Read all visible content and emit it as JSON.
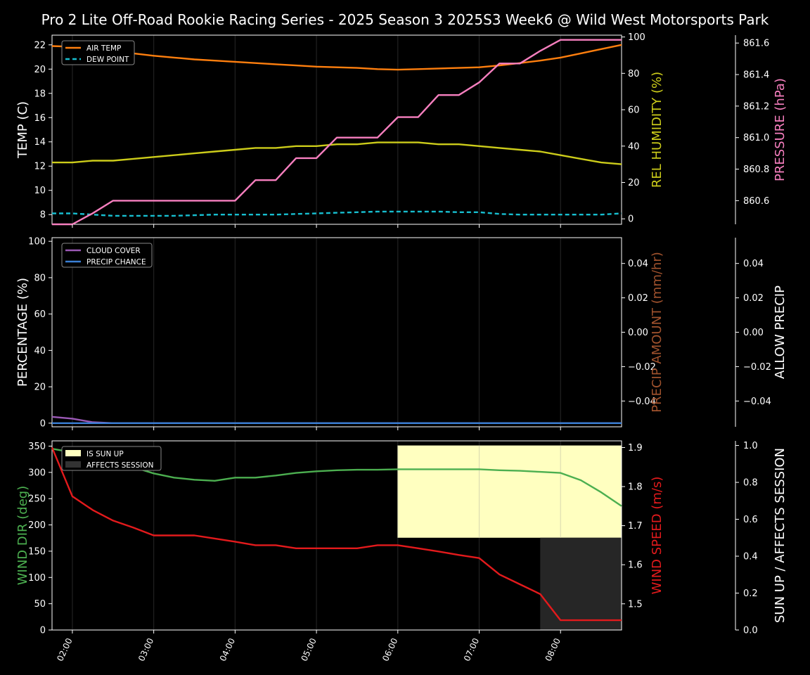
{
  "title": "Pro 2 Lite Off-Road Rookie Racing Series - 2025 Season 3 2025S3 Week6 @ Wild West Motorsports Park",
  "colors": {
    "air_temp": "#ff7f0e",
    "dew_point": "#17becf",
    "humidity": "#cccc1a",
    "pressure": "#f77fbf",
    "cloud": "#9b59b6",
    "precip": "#3a7fd5",
    "precip_amount": "#a0522d",
    "wind_dir": "#4caf50",
    "wind_speed": "#e31a1c",
    "sun_up": "#ffffc0",
    "affects": "#262626",
    "grid": "#222222"
  },
  "x_ticks": [
    "02:00",
    "03:00",
    "04:00",
    "05:00",
    "06:00",
    "07:00",
    "08:00"
  ],
  "chart_data": [
    {
      "type": "line",
      "x_hours": [
        1.75,
        2.0,
        2.25,
        2.5,
        2.75,
        3.0,
        3.25,
        3.5,
        3.75,
        4.0,
        4.25,
        4.5,
        4.75,
        5.0,
        5.25,
        5.5,
        5.75,
        6.0,
        6.25,
        6.5,
        6.75,
        7.0,
        7.25,
        7.5,
        7.75,
        8.0,
        8.25,
        8.5,
        8.75
      ],
      "axes": {
        "left": {
          "label": "TEMP (C)",
          "ylim": [
            7.2,
            22.8
          ],
          "ticks": [
            8,
            10,
            12,
            14,
            16,
            18,
            20,
            22
          ]
        },
        "right1": {
          "label": "REL HUMIDITY (%)",
          "ylim": [
            -3,
            101
          ],
          "ticks": [
            0,
            20,
            40,
            60,
            80,
            100
          ]
        },
        "right2": {
          "label": "PRESSURE (hPa)",
          "ylim": [
            860.45,
            861.65
          ],
          "ticks": [
            "860.6",
            "860.8",
            "861.0",
            "861.2",
            "861.4",
            "861.6"
          ]
        }
      },
      "legend": [
        "AIR TEMP",
        "DEW POINT"
      ],
      "series": [
        {
          "name": "AIR TEMP",
          "axis": "left",
          "values": [
            21.9,
            21.85,
            21.7,
            21.5,
            21.3,
            21.1,
            20.95,
            20.8,
            20.7,
            20.6,
            20.5,
            20.4,
            20.3,
            20.2,
            20.15,
            20.1,
            20.0,
            19.95,
            20.0,
            20.05,
            20.1,
            20.15,
            20.3,
            20.5,
            20.7,
            20.95,
            21.3,
            21.65,
            22.0
          ]
        },
        {
          "name": "DEW POINT",
          "axis": "left",
          "values": [
            8.1,
            8.1,
            8.0,
            7.9,
            7.9,
            7.9,
            7.9,
            7.95,
            8.0,
            8.0,
            8.0,
            8.0,
            8.05,
            8.1,
            8.15,
            8.2,
            8.25,
            8.25,
            8.25,
            8.25,
            8.2,
            8.2,
            8.05,
            8.0,
            8.0,
            8.0,
            8.0,
            8.0,
            8.1
          ]
        },
        {
          "name": "REL HUMIDITY",
          "axis": "right1",
          "values": [
            31,
            31,
            32,
            32,
            33,
            34,
            35,
            36,
            37,
            38,
            39,
            39,
            40,
            40,
            41,
            41,
            42,
            42,
            42,
            41,
            41,
            40,
            39,
            38,
            37,
            35,
            33,
            31,
            30
          ]
        },
        {
          "name": "PRESSURE",
          "axis": "right2",
          "values": [
            860.45,
            860.45,
            860.52,
            860.6,
            860.6,
            860.6,
            860.6,
            860.6,
            860.6,
            860.6,
            860.73,
            860.73,
            860.87,
            860.87,
            861.0,
            861.0,
            861.0,
            861.13,
            861.13,
            861.27,
            861.27,
            861.35,
            861.47,
            861.47,
            861.55,
            861.62,
            861.62,
            861.62,
            861.62
          ]
        }
      ]
    },
    {
      "type": "line",
      "x_hours": [
        1.75,
        2.0,
        2.25,
        2.5,
        2.75,
        3.0,
        3.25,
        3.5,
        3.75,
        4.0,
        4.25,
        4.5,
        4.75,
        5.0,
        5.25,
        5.5,
        5.75,
        6.0,
        6.25,
        6.5,
        6.75,
        7.0,
        7.25,
        7.5,
        7.75,
        8.0,
        8.25,
        8.5,
        8.75
      ],
      "axes": {
        "left": {
          "label": "PERCENTAGE (%)",
          "ylim": [
            -2,
            102
          ],
          "ticks": [
            0,
            20,
            40,
            60,
            80,
            100
          ]
        },
        "right1": {
          "label": "PRECIP AMOUNT (mm/hr)",
          "ylim": [
            -0.055,
            0.055
          ],
          "ticks": [
            "0.04",
            "0.02",
            "0.00",
            "−0.02",
            "−0.04"
          ]
        },
        "right2": {
          "label": "ALLOW PRECIP",
          "ylim": [
            -0.055,
            0.055
          ],
          "ticks": [
            "0.04",
            "0.02",
            "0.00",
            "−0.02",
            "−0.04"
          ]
        }
      },
      "legend": [
        "CLOUD COVER",
        "PRECIP CHANCE"
      ],
      "series": [
        {
          "name": "CLOUD COVER",
          "axis": "left",
          "values": [
            3.5,
            2.5,
            0.5,
            0,
            0,
            0,
            0,
            0,
            0,
            0,
            0,
            0,
            0,
            0,
            0,
            0,
            0,
            0,
            0,
            0,
            0,
            0,
            0,
            0,
            0,
            0,
            0,
            0,
            0
          ]
        },
        {
          "name": "PRECIP CHANCE",
          "axis": "left",
          "values": [
            0,
            0,
            0,
            0,
            0,
            0,
            0,
            0,
            0,
            0,
            0,
            0,
            0,
            0,
            0,
            0,
            0,
            0,
            0,
            0,
            0,
            0,
            0,
            0,
            0,
            0,
            0,
            0,
            0
          ]
        }
      ]
    },
    {
      "type": "line",
      "x_hours": [
        1.75,
        2.0,
        2.25,
        2.5,
        2.75,
        3.0,
        3.25,
        3.5,
        3.75,
        4.0,
        4.25,
        4.5,
        4.75,
        5.0,
        5.25,
        5.5,
        5.75,
        6.0,
        6.25,
        6.5,
        6.75,
        7.0,
        7.25,
        7.5,
        7.75,
        8.0,
        8.25,
        8.5,
        8.75
      ],
      "axes": {
        "left": {
          "label": "WIND DIR (deg)",
          "ylim": [
            0,
            360
          ],
          "ticks": [
            0,
            50,
            100,
            150,
            200,
            250,
            300,
            350
          ]
        },
        "right1": {
          "label": "WIND SPEED (m/s)",
          "ylim": [
            1.433,
            1.917
          ],
          "ticks": [
            "1.5",
            "1.6",
            "1.7",
            "1.8",
            "1.9"
          ]
        },
        "right2": {
          "label": "SUN UP / AFFECTS SESSION",
          "ylim": [
            0,
            1.025
          ],
          "ticks": [
            "0.0",
            "0.2",
            "0.4",
            "0.6",
            "0.8",
            "1.0"
          ]
        }
      },
      "legend": [
        "IS SUN UP",
        "AFFECTS SESSION"
      ],
      "sun_up": {
        "from_hour": 6.0,
        "to_hour": 8.75,
        "bottom": 0.5,
        "top": 1.0
      },
      "affects_session": {
        "from_hour": 7.75,
        "to_hour": 8.75,
        "bottom": 0.0,
        "top": 0.5
      },
      "series": [
        {
          "name": "WIND DIR",
          "axis": "left",
          "values": [
            345,
            338,
            330,
            320,
            310,
            298,
            290,
            286,
            284,
            290,
            290,
            294,
            299,
            302,
            304,
            305,
            305,
            306,
            306,
            306,
            306,
            306,
            304,
            303,
            301,
            299,
            285,
            262,
            236
          ]
        },
        {
          "name": "WIND SPEED",
          "axis": "right1",
          "values": [
            1.9,
            1.775,
            1.74,
            1.713,
            1.695,
            1.675,
            1.675,
            1.675,
            1.667,
            1.659,
            1.65,
            1.65,
            1.642,
            1.642,
            1.642,
            1.642,
            1.65,
            1.65,
            1.642,
            1.634,
            1.625,
            1.617,
            1.575,
            1.55,
            1.525,
            1.458,
            1.458,
            1.458,
            1.458
          ]
        }
      ]
    }
  ]
}
